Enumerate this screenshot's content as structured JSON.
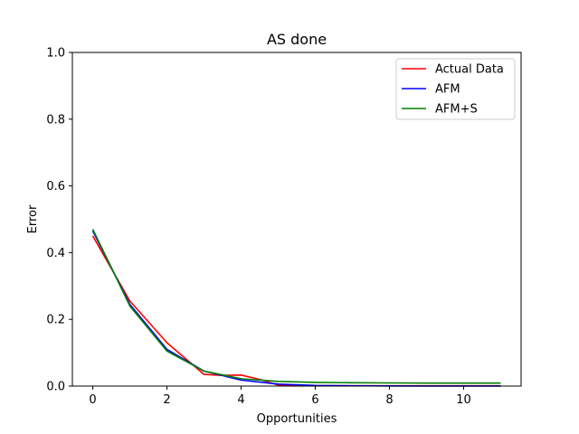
{
  "chart_data": {
    "type": "line",
    "title": "AS done",
    "xlabel": "Opportunities",
    "ylabel": "Error",
    "xlim": [
      -0.55,
      11.55
    ],
    "ylim": [
      0,
      1.0
    ],
    "xticks": [
      0,
      2,
      4,
      6,
      8,
      10
    ],
    "yticks": [
      0.0,
      0.2,
      0.4,
      0.6,
      0.8,
      1.0
    ],
    "xtick_labels": [
      "0",
      "2",
      "4",
      "6",
      "8",
      "10"
    ],
    "ytick_labels": [
      "0.0",
      "0.2",
      "0.4",
      "0.6",
      "0.8",
      "1.0"
    ],
    "grid": false,
    "legend_position": "top-right",
    "x": [
      0,
      1,
      2,
      3,
      4,
      5,
      6,
      7,
      8,
      9,
      10,
      11
    ],
    "series": [
      {
        "name": "Actual Data",
        "color": "#ff0000",
        "x": [
          0,
          1,
          2,
          3,
          3.5,
          4,
          4.5,
          5,
          6,
          7,
          8,
          9,
          10,
          11
        ],
        "values": [
          0.45,
          0.255,
          0.13,
          0.035,
          0.032,
          0.033,
          0.02,
          0.003,
          0.001,
          0.001,
          0.001,
          0.001,
          0.001,
          0.001
        ]
      },
      {
        "name": "AFM",
        "color": "#0000ff",
        "x": [
          0,
          1,
          2,
          3,
          4,
          5,
          6,
          7,
          8,
          9,
          10,
          11
        ],
        "values": [
          0.465,
          0.245,
          0.11,
          0.045,
          0.018,
          0.006,
          0.002,
          0.001,
          0.0005,
          0.0003,
          0.0002,
          0.0001
        ]
      },
      {
        "name": "AFM+S",
        "color": "#008000",
        "x": [
          0,
          1,
          2,
          3,
          4,
          5,
          6,
          7,
          8,
          9,
          10,
          11
        ],
        "values": [
          0.47,
          0.24,
          0.105,
          0.045,
          0.022,
          0.014,
          0.011,
          0.01,
          0.0095,
          0.009,
          0.009,
          0.009
        ]
      }
    ]
  }
}
